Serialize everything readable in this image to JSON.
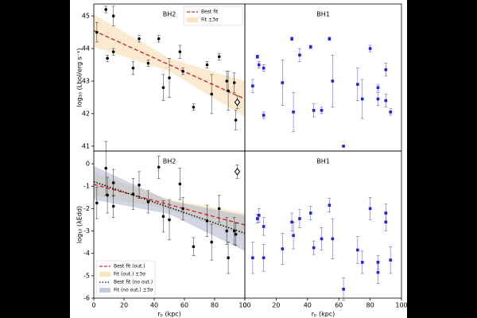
{
  "chart_data": [
    {
      "type": "scatter",
      "title": "BH2",
      "ylabel": "log₁₀ (Lbol/erg s⁻¹)",
      "color": "#000000",
      "xlim": [
        0,
        100
      ],
      "ylim": [
        40.85,
        45.37
      ],
      "yticks": [
        41,
        42,
        43,
        44,
        45
      ],
      "x": [
        2,
        8,
        9,
        13,
        13,
        26,
        30,
        36,
        43,
        46,
        50,
        57,
        59,
        66,
        75,
        78,
        83,
        88,
        89,
        93,
        94
      ],
      "values": [
        44.5,
        45.2,
        43.7,
        45.0,
        43.9,
        43.4,
        44.3,
        43.55,
        44.3,
        42.8,
        43.1,
        43.9,
        43.3,
        42.2,
        43.5,
        42.6,
        43.75,
        43.0,
        42.7,
        42.95,
        41.8
      ],
      "errors": [
        0.3,
        0.1,
        0.1,
        0.3,
        0.1,
        0.2,
        0.1,
        0.1,
        0.1,
        0.4,
        0.6,
        0.2,
        0.1,
        0.1,
        0.1,
        0.6,
        0.1,
        0.3,
        0.6,
        0.3,
        0.3
      ],
      "outlier": {
        "x": 95,
        "value": 42.35,
        "error": 0.2
      },
      "legend": "upper right",
      "fits": [
        {
          "name": "Best fit",
          "kind": "line",
          "color": "#d62728",
          "dash": "dashed",
          "x": [
            0,
            100
          ],
          "values": [
            44.55,
            42.45
          ]
        },
        {
          "name": "Fit ±3σ",
          "kind": "band",
          "color": "#f7d9a8",
          "x": [
            0,
            50,
            100
          ],
          "lower": [
            44.05,
            43.3,
            41.9
          ],
          "upper": [
            45.05,
            43.7,
            43.0
          ]
        }
      ]
    },
    {
      "type": "scatter",
      "title": "BH1",
      "color": "#2323d9",
      "xlim": [
        0,
        100
      ],
      "ylim": [
        40.85,
        45.37
      ],
      "x": [
        5,
        8,
        9,
        12,
        12,
        24,
        30,
        31,
        35,
        42,
        44,
        49,
        54,
        56,
        63,
        72,
        75,
        80,
        85,
        85,
        90,
        90,
        93
      ],
      "values": [
        42.85,
        43.75,
        43.5,
        43.4,
        41.95,
        42.95,
        44.3,
        42.05,
        43.8,
        44.05,
        42.1,
        42.1,
        44.3,
        43.0,
        41.0,
        42.9,
        42.45,
        44.0,
        42.8,
        42.45,
        43.35,
        42.4,
        42.05
      ],
      "errors": [
        0.2,
        0.05,
        0.1,
        0.1,
        0.1,
        0.7,
        0.05,
        0.6,
        0.2,
        0.05,
        0.2,
        0.1,
        0.05,
        0.8,
        0.02,
        0.5,
        0.6,
        0.1,
        0.1,
        0.2,
        0.2,
        0.2,
        0.1
      ]
    },
    {
      "type": "scatter",
      "title": "BH2",
      "ylabel": "log₁₀ (λEdd)",
      "xlabel": "rₚ (kpc)",
      "color": "#000000",
      "xlim": [
        0,
        100
      ],
      "ylim": [
        -6,
        0.57
      ],
      "yticks": [
        -6,
        -5,
        -4,
        -3,
        -2,
        -1,
        0
      ],
      "xticks": [
        0,
        20,
        40,
        60,
        80,
        100
      ],
      "x": [
        2,
        8,
        9,
        13,
        13,
        26,
        30,
        36,
        43,
        46,
        50,
        57,
        59,
        66,
        75,
        78,
        83,
        88,
        89,
        93,
        94
      ],
      "values": [
        -1.75,
        -0.2,
        -1.4,
        -0.85,
        -1.9,
        -1.35,
        -0.95,
        -1.7,
        -0.15,
        -2.35,
        -2.5,
        -0.9,
        -2.0,
        -3.7,
        -2.55,
        -3.5,
        -2.0,
        -3.0,
        -4.2,
        -3.0,
        -3.15
      ],
      "errors": [
        0.7,
        1.2,
        0.8,
        0.6,
        0.5,
        0.7,
        0.6,
        0.5,
        0.5,
        0.7,
        0.9,
        0.7,
        0.5,
        0.4,
        0.7,
        0.8,
        0.6,
        0.6,
        0.7,
        0.6,
        0.5
      ],
      "outlier": {
        "x": 95,
        "value": -0.35,
        "error": 0.3
      },
      "legend": "lower left",
      "fits": [
        {
          "name": "Best fit (out.)",
          "kind": "line",
          "color": "#d62728",
          "dash": "dashed",
          "x": [
            0,
            100
          ],
          "values": [
            -0.92,
            -2.73
          ]
        },
        {
          "name": "Fit (out.) ±3σ",
          "kind": "band",
          "color": "#f7d9a8",
          "x": [
            0,
            50,
            100
          ],
          "lower": [
            -1.4,
            -2.05,
            -3.25
          ],
          "upper": [
            -0.4,
            -1.6,
            -2.2
          ]
        },
        {
          "name": "Best fit (no out.)",
          "kind": "line",
          "color": "#000000",
          "dash": "dotted",
          "x": [
            0,
            100
          ],
          "values": [
            -0.8,
            -3.1
          ]
        },
        {
          "name": "Fit (no out.) ±3σ",
          "kind": "band",
          "color": "#a9b4cc",
          "x": [
            0,
            50,
            100
          ],
          "lower": [
            -1.6,
            -2.25,
            -3.9
          ],
          "upper": [
            -0.1,
            -1.65,
            -2.3
          ]
        }
      ]
    },
    {
      "type": "scatter",
      "title": "BH1",
      "xlabel": "rₚ (kpc)",
      "color": "#2323d9",
      "xlim": [
        0,
        100
      ],
      "ylim": [
        -6,
        0.57
      ],
      "xticks": [
        0,
        20,
        40,
        60,
        80,
        100
      ],
      "x": [
        5,
        8,
        9,
        12,
        12,
        24,
        30,
        31,
        35,
        42,
        44,
        49,
        54,
        56,
        63,
        72,
        75,
        80,
        85,
        85,
        90,
        90,
        93
      ],
      "values": [
        -4.2,
        -2.45,
        -2.3,
        -2.8,
        -4.2,
        -3.8,
        -2.6,
        -3.2,
        -2.45,
        -2.2,
        -3.75,
        -3.35,
        -1.85,
        -3.35,
        -5.6,
        -3.85,
        -4.4,
        -2.0,
        -4.4,
        -4.85,
        -2.2,
        -2.6,
        -4.3
      ],
      "errors": [
        0.7,
        0.2,
        0.3,
        0.4,
        0.6,
        0.7,
        0.4,
        0.6,
        0.4,
        0.3,
        0.3,
        0.5,
        0.3,
        0.9,
        0.5,
        0.6,
        0.5,
        0.5,
        0.3,
        0.5,
        0.4,
        0.4,
        0.6
      ]
    }
  ]
}
